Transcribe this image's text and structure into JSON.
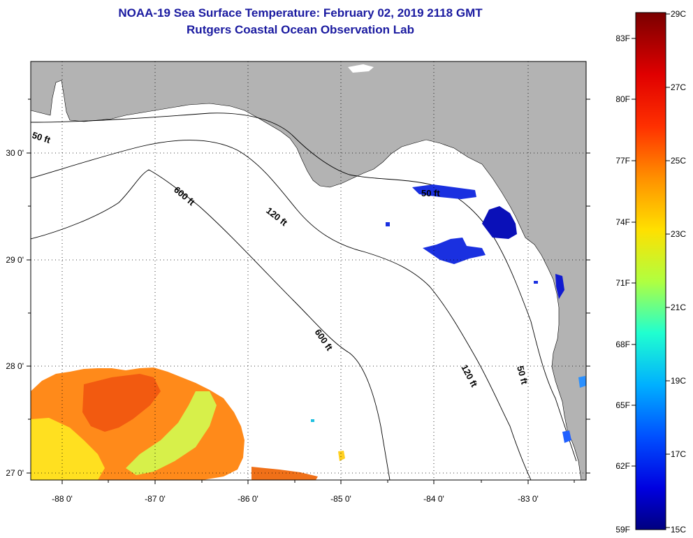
{
  "title": {
    "line1": "NOAA-19 Sea Surface Temperature:  February 02, 2019 2118 GMT",
    "line2": "Rutgers Coastal Ocean Observation Lab"
  },
  "map": {
    "lon_ticks": [
      "-88 0'",
      "-87 0'",
      "-86 0'",
      "-85 0'",
      "-84 0'",
      "-83 0'"
    ],
    "lat_ticks": [
      "30 0'",
      "29 0'",
      "28 0'",
      "27 0'"
    ],
    "contours": [
      "50 ft",
      "600 ft",
      "120 ft",
      "50 ft",
      "600 ft",
      "120 ft",
      "50 ft"
    ],
    "land_color": "#b3b3b3",
    "ocean_color": "#ffffff"
  },
  "colorbar": {
    "fahrenheit": [
      "83F",
      "80F",
      "77F",
      "74F",
      "71F",
      "68F",
      "65F",
      "62F",
      "59F"
    ],
    "celsius": [
      "29C",
      "27C",
      "25C",
      "23C",
      "21C",
      "19C",
      "17C",
      "15C"
    ],
    "colors": [
      "#8b0000",
      "#ff0000",
      "#ff7f00",
      "#ffff00",
      "#00ffff",
      "#0060ff",
      "#00008b"
    ]
  }
}
